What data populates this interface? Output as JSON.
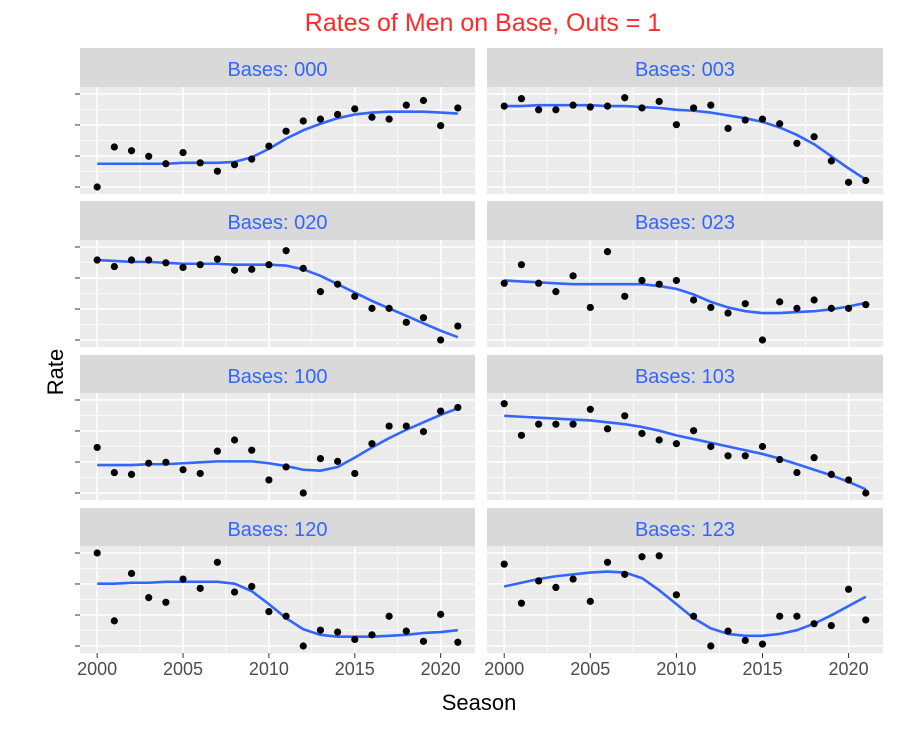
{
  "chart_data": {
    "type": "scatter",
    "title": "Rates of Men on Base, Outs = 1",
    "xlabel": "Season",
    "ylabel": "Rate",
    "xlim": [
      1999,
      2022
    ],
    "x_ticks": [
      2000,
      2005,
      2010,
      2015,
      2020
    ],
    "x_tick_labels": [
      "2000",
      "2005",
      "2010",
      "2015",
      "2020"
    ],
    "ylim": [
      0,
      1
    ],
    "y_tick_labels_shown": false,
    "point_color": "#000000",
    "smooth_color": "#3366ff",
    "title_color": "#ff2a2a",
    "strip_text_color": "#3366ff",
    "panel_background": "#ebebeb",
    "strip_background": "#d9d9d9",
    "x": [
      2000,
      2001,
      2002,
      2003,
      2004,
      2005,
      2006,
      2007,
      2008,
      2009,
      2010,
      2011,
      2012,
      2013,
      2014,
      2015,
      2016,
      2017,
      2018,
      2019,
      2020,
      2021
    ],
    "panels": [
      {
        "label": "Bases: 000",
        "y": [
          0.0,
          0.43,
          0.39,
          0.33,
          0.25,
          0.37,
          0.26,
          0.17,
          0.24,
          0.3,
          0.44,
          0.6,
          0.71,
          0.73,
          0.78,
          0.84,
          0.75,
          0.73,
          0.88,
          0.93,
          0.66,
          0.85
        ],
        "smooth": [
          0.25,
          0.25,
          0.25,
          0.25,
          0.25,
          0.26,
          0.26,
          0.26,
          0.27,
          0.32,
          0.41,
          0.52,
          0.61,
          0.68,
          0.74,
          0.78,
          0.8,
          0.81,
          0.81,
          0.81,
          0.8,
          0.79
        ]
      },
      {
        "label": "Bases: 003",
        "y": [
          0.87,
          0.95,
          0.83,
          0.83,
          0.88,
          0.86,
          0.87,
          0.96,
          0.85,
          0.92,
          0.67,
          0.85,
          0.88,
          0.63,
          0.72,
          0.73,
          0.68,
          0.47,
          0.54,
          0.28,
          0.05,
          0.07
        ],
        "smooth": [
          0.87,
          0.87,
          0.88,
          0.88,
          0.88,
          0.88,
          0.87,
          0.87,
          0.86,
          0.85,
          0.83,
          0.82,
          0.8,
          0.77,
          0.74,
          0.7,
          0.64,
          0.56,
          0.46,
          0.33,
          0.2,
          0.08
        ]
      },
      {
        "label": "Bases: 020",
        "y": [
          0.86,
          0.79,
          0.86,
          0.86,
          0.83,
          0.78,
          0.81,
          0.87,
          0.75,
          0.76,
          0.81,
          0.96,
          0.77,
          0.52,
          0.6,
          0.47,
          0.34,
          0.34,
          0.19,
          0.24,
          0.0,
          0.15
        ],
        "smooth": [
          0.86,
          0.85,
          0.84,
          0.84,
          0.83,
          0.82,
          0.82,
          0.82,
          0.81,
          0.81,
          0.81,
          0.8,
          0.76,
          0.69,
          0.6,
          0.51,
          0.42,
          0.34,
          0.26,
          0.18,
          0.1,
          0.03
        ]
      },
      {
        "label": "Bases: 023",
        "y": [
          0.61,
          0.81,
          0.61,
          0.52,
          0.69,
          0.35,
          0.95,
          0.47,
          0.64,
          0.6,
          0.64,
          0.43,
          0.35,
          0.29,
          0.39,
          0.0,
          0.41,
          0.34,
          0.43,
          0.34,
          0.34,
          0.38
        ],
        "smooth": [
          0.64,
          0.63,
          0.62,
          0.61,
          0.6,
          0.6,
          0.6,
          0.6,
          0.6,
          0.58,
          0.55,
          0.49,
          0.41,
          0.35,
          0.31,
          0.29,
          0.29,
          0.3,
          0.31,
          0.33,
          0.36,
          0.4
        ]
      },
      {
        "label": "Bases: 100",
        "y": [
          0.49,
          0.22,
          0.2,
          0.32,
          0.33,
          0.25,
          0.21,
          0.45,
          0.57,
          0.46,
          0.14,
          0.28,
          0.0,
          0.37,
          0.34,
          0.21,
          0.53,
          0.72,
          0.72,
          0.66,
          0.88,
          0.92
        ],
        "smooth": [
          0.3,
          0.3,
          0.3,
          0.31,
          0.31,
          0.32,
          0.33,
          0.34,
          0.34,
          0.34,
          0.32,
          0.29,
          0.25,
          0.24,
          0.28,
          0.38,
          0.49,
          0.59,
          0.68,
          0.76,
          0.84,
          0.91
        ]
      },
      {
        "label": "Bases: 103",
        "y": [
          0.96,
          0.62,
          0.74,
          0.74,
          0.74,
          0.9,
          0.69,
          0.83,
          0.64,
          0.57,
          0.53,
          0.67,
          0.5,
          0.4,
          0.4,
          0.5,
          0.36,
          0.22,
          0.38,
          0.2,
          0.14,
          0.0
        ],
        "smooth": [
          0.83,
          0.82,
          0.81,
          0.8,
          0.79,
          0.78,
          0.76,
          0.74,
          0.71,
          0.67,
          0.62,
          0.58,
          0.54,
          0.5,
          0.46,
          0.42,
          0.37,
          0.31,
          0.25,
          0.19,
          0.12,
          0.04
        ]
      },
      {
        "label": "Bases: 120",
        "y": [
          1.0,
          0.27,
          0.78,
          0.52,
          0.47,
          0.72,
          0.62,
          0.9,
          0.58,
          0.64,
          0.37,
          0.32,
          0.0,
          0.17,
          0.15,
          0.07,
          0.12,
          0.32,
          0.16,
          0.05,
          0.34,
          0.04
        ],
        "smooth": [
          0.67,
          0.67,
          0.68,
          0.68,
          0.69,
          0.69,
          0.69,
          0.69,
          0.67,
          0.59,
          0.45,
          0.3,
          0.18,
          0.12,
          0.1,
          0.1,
          0.1,
          0.11,
          0.12,
          0.14,
          0.15,
          0.17
        ]
      },
      {
        "label": "Bases: 123",
        "y": [
          0.88,
          0.46,
          0.7,
          0.63,
          0.72,
          0.48,
          0.9,
          0.77,
          0.96,
          0.97,
          0.55,
          0.32,
          0.0,
          0.16,
          0.06,
          0.02,
          0.32,
          0.32,
          0.24,
          0.22,
          0.61,
          0.28
        ],
        "smooth": [
          0.64,
          0.68,
          0.72,
          0.75,
          0.77,
          0.79,
          0.8,
          0.79,
          0.73,
          0.6,
          0.45,
          0.3,
          0.19,
          0.13,
          0.11,
          0.11,
          0.13,
          0.17,
          0.24,
          0.33,
          0.43,
          0.53
        ]
      }
    ]
  }
}
